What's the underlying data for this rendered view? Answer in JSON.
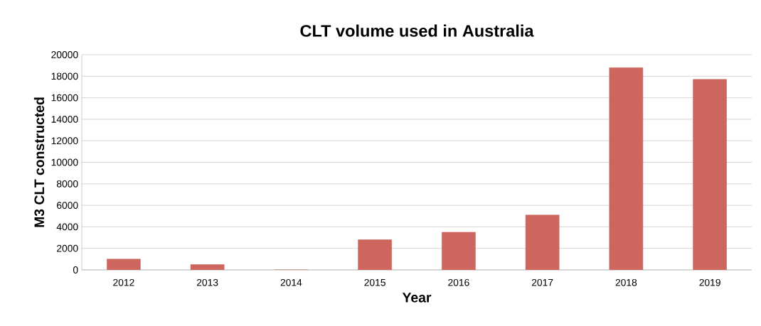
{
  "chart_data": {
    "type": "bar",
    "title": "CLT volume used in Australia",
    "xlabel": "Year",
    "ylabel": "M3 CLT constructed",
    "categories": [
      "2012",
      "2013",
      "2014",
      "2015",
      "2016",
      "2017",
      "2018",
      "2019"
    ],
    "values": [
      1000,
      500,
      0,
      2800,
      3500,
      5100,
      18800,
      17700
    ],
    "color": "#cd665e",
    "ylim": [
      0,
      20000
    ],
    "yticks": [
      0,
      2000,
      4000,
      6000,
      8000,
      10000,
      12000,
      14000,
      16000,
      18000,
      20000
    ],
    "grid": "y"
  }
}
